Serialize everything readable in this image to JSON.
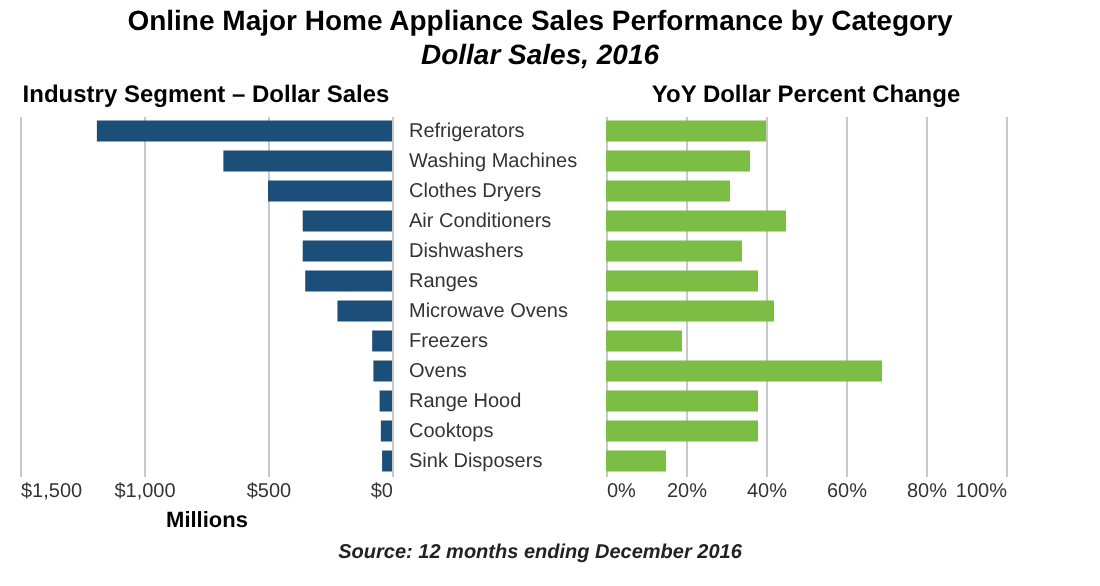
{
  "chart_data": [
    {
      "type": "other",
      "title": "Online Major Home Appliance Sales Performance by Category",
      "subtitle": "Dollar Sales, 2016",
      "annotations": [
        "Source: 12 months ending December 2016"
      ]
    },
    {
      "type": "bar",
      "orientation": "horizontal",
      "title": "Industry Segment – Dollar Sales",
      "xlabel": "Millions",
      "categories": [
        "Refrigerators",
        "Washing Machines",
        "Clothes Dryers",
        "Air Conditioners",
        "Dishwashers",
        "Ranges",
        "Microwave Ovens",
        "Freezers",
        "Ovens",
        "Range Hood",
        "Cooktops",
        "Sink Disposers"
      ],
      "values": [
        1190,
        680,
        500,
        360,
        360,
        350,
        220,
        80,
        75,
        50,
        45,
        40
      ],
      "color": "#1b4f7a",
      "xlim": [
        1500,
        0
      ],
      "xticks": [
        {
          "value": 1500,
          "label": "$1,500"
        },
        {
          "value": 1000,
          "label": "$1,000"
        },
        {
          "value": 500,
          "label": "$500"
        },
        {
          "value": 0,
          "label": "$0"
        }
      ],
      "grid": "x"
    },
    {
      "type": "bar",
      "orientation": "horizontal",
      "title": "YoY Dollar Percent Change",
      "categories": [
        null,
        null,
        null,
        null,
        null,
        null,
        null,
        null,
        null,
        null,
        null,
        null
      ],
      "values": [
        40,
        36,
        31,
        45,
        34,
        38,
        42,
        19,
        69,
        38,
        38,
        15
      ],
      "color": "#7cbd45",
      "xlim": [
        0,
        100
      ],
      "xticks": [
        {
          "value": 0,
          "label": "0%"
        },
        {
          "value": 20,
          "label": "20%"
        },
        {
          "value": 40,
          "label": "40%"
        },
        {
          "value": 60,
          "label": "60%"
        },
        {
          "value": 80,
          "label": "80%"
        },
        {
          "value": 100,
          "label": "100%"
        }
      ],
      "grid": "x",
      "tick_labels": "x"
    }
  ]
}
